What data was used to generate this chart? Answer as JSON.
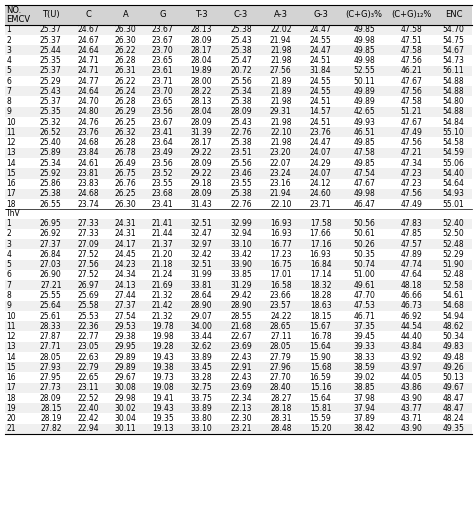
{
  "headers": [
    "NO.",
    "T(U)",
    "C",
    "A",
    "G",
    "T-3",
    "C-3",
    "A-3",
    "G-3",
    "(C+G)₃%",
    "(C+G)₁₂%",
    "ENC"
  ],
  "header2": [
    "EMCV",
    "",
    "",
    "",
    "",
    "",
    "",
    "",
    "",
    "",
    "",
    ""
  ],
  "section1_label": "EMCV",
  "section2_label": "ThV",
  "emcv_data": [
    [
      1,
      25.37,
      24.67,
      26.3,
      23.67,
      28.13,
      25.38,
      22.02,
      24.47,
      49.85,
      47.58,
      54.7
    ],
    [
      2,
      25.37,
      24.67,
      26.3,
      23.67,
      28.09,
      25.43,
      21.94,
      24.55,
      49.98,
      47.51,
      54.75
    ],
    [
      3,
      25.44,
      24.64,
      26.22,
      23.7,
      28.17,
      25.38,
      21.98,
      24.47,
      49.85,
      47.58,
      54.67
    ],
    [
      4,
      25.35,
      24.71,
      26.28,
      23.65,
      28.04,
      25.47,
      21.98,
      24.51,
      49.98,
      47.56,
      54.73
    ],
    [
      5,
      25.37,
      24.71,
      26.31,
      23.61,
      19.89,
      20.72,
      27.56,
      31.84,
      52.55,
      46.21,
      56.11
    ],
    [
      6,
      25.29,
      24.77,
      26.22,
      23.71,
      28.0,
      25.56,
      21.89,
      24.55,
      50.11,
      47.67,
      54.88
    ],
    [
      7,
      25.43,
      24.64,
      26.24,
      23.7,
      28.22,
      25.34,
      21.89,
      24.55,
      49.89,
      47.56,
      54.88
    ],
    [
      8,
      25.37,
      24.7,
      26.28,
      23.65,
      28.13,
      25.38,
      21.98,
      24.51,
      49.89,
      47.58,
      54.8
    ],
    [
      9,
      25.35,
      24.8,
      26.29,
      23.56,
      28.04,
      28.09,
      29.31,
      14.57,
      42.65,
      51.21,
      54.88
    ],
    [
      10,
      25.32,
      24.76,
      26.25,
      23.67,
      28.09,
      25.43,
      21.98,
      24.51,
      49.93,
      47.67,
      54.84
    ],
    [
      11,
      26.52,
      23.76,
      26.32,
      23.41,
      31.39,
      22.76,
      22.1,
      23.76,
      46.51,
      47.49,
      55.1
    ],
    [
      12,
      25.4,
      24.68,
      26.28,
      23.64,
      28.17,
      25.38,
      21.98,
      24.47,
      49.85,
      47.56,
      54.58
    ],
    [
      13,
      25.89,
      23.84,
      26.78,
      23.49,
      29.22,
      23.51,
      23.2,
      24.07,
      47.58,
      47.21,
      54.59
    ],
    [
      14,
      25.34,
      24.61,
      26.49,
      23.56,
      28.09,
      25.56,
      22.07,
      24.29,
      49.85,
      47.34,
      55.06
    ],
    [
      15,
      25.92,
      23.81,
      26.75,
      23.52,
      29.22,
      23.46,
      23.24,
      24.07,
      47.54,
      47.23,
      54.4
    ],
    [
      16,
      25.86,
      23.83,
      26.76,
      23.55,
      29.18,
      23.55,
      23.16,
      24.12,
      47.67,
      47.23,
      54.64
    ],
    [
      17,
      25.38,
      24.68,
      26.25,
      23.68,
      28.09,
      25.38,
      21.94,
      24.6,
      49.98,
      47.56,
      54.93
    ],
    [
      18,
      26.55,
      23.74,
      26.3,
      23.41,
      31.43,
      22.76,
      22.1,
      23.71,
      46.47,
      47.49,
      55.01
    ]
  ],
  "thv_data": [
    [
      1,
      26.95,
      27.33,
      24.31,
      21.41,
      32.51,
      32.99,
      16.93,
      17.58,
      50.56,
      47.83,
      52.4
    ],
    [
      2,
      26.92,
      27.33,
      24.31,
      21.44,
      32.47,
      32.94,
      16.93,
      17.66,
      50.61,
      47.85,
      52.5
    ],
    [
      3,
      27.37,
      27.09,
      24.17,
      21.37,
      32.97,
      33.1,
      16.77,
      17.16,
      50.26,
      47.57,
      52.48
    ],
    [
      4,
      26.84,
      27.52,
      24.45,
      21.2,
      32.42,
      33.42,
      17.23,
      16.93,
      50.35,
      47.89,
      52.29
    ],
    [
      5,
      27.03,
      27.56,
      24.23,
      21.18,
      32.51,
      33.9,
      16.75,
      16.84,
      50.74,
      47.74,
      51.9
    ],
    [
      6,
      26.9,
      27.52,
      24.34,
      21.24,
      31.99,
      33.85,
      17.01,
      17.14,
      51.0,
      47.64,
      52.48
    ],
    [
      7,
      27.21,
      26.97,
      24.13,
      21.69,
      33.81,
      31.29,
      16.58,
      18.32,
      49.61,
      48.18,
      52.58
    ],
    [
      8,
      25.55,
      25.69,
      27.44,
      21.32,
      28.64,
      29.42,
      23.66,
      18.28,
      47.7,
      46.66,
      54.61
    ],
    [
      9,
      25.64,
      25.58,
      27.37,
      21.42,
      28.9,
      28.9,
      23.57,
      18.63,
      47.53,
      46.73,
      54.68
    ],
    [
      10,
      25.61,
      25.53,
      27.54,
      21.32,
      29.07,
      28.55,
      24.22,
      18.15,
      46.71,
      46.92,
      54.94
    ],
    [
      11,
      28.33,
      22.36,
      29.53,
      19.78,
      34.0,
      21.68,
      28.65,
      15.67,
      37.35,
      44.54,
      48.62
    ],
    [
      12,
      27.87,
      22.77,
      29.38,
      19.98,
      33.44,
      22.67,
      27.11,
      16.78,
      39.45,
      44.4,
      50.34
    ],
    [
      13,
      27.71,
      23.05,
      29.95,
      19.28,
      32.62,
      23.69,
      28.05,
      15.64,
      39.33,
      43.84,
      49.83
    ],
    [
      14,
      28.05,
      22.63,
      29.89,
      19.43,
      33.89,
      22.43,
      27.79,
      15.9,
      38.33,
      43.92,
      49.48
    ],
    [
      15,
      27.93,
      22.79,
      29.89,
      19.38,
      33.45,
      22.91,
      27.96,
      15.68,
      38.59,
      43.97,
      49.26
    ],
    [
      16,
      27.95,
      22.65,
      29.67,
      19.73,
      33.28,
      22.43,
      27.7,
      16.59,
      39.02,
      44.05,
      50.13
    ],
    [
      17,
      27.73,
      23.11,
      30.08,
      19.08,
      32.75,
      23.69,
      28.4,
      15.16,
      38.85,
      43.86,
      49.67
    ],
    [
      18,
      28.09,
      22.52,
      29.98,
      19.41,
      33.75,
      22.34,
      28.27,
      15.64,
      37.98,
      43.9,
      48.47
    ],
    [
      19,
      28.15,
      22.4,
      30.02,
      19.43,
      33.89,
      22.13,
      28.18,
      15.81,
      37.94,
      43.77,
      48.47
    ],
    [
      20,
      28.19,
      22.42,
      30.04,
      19.35,
      33.8,
      22.3,
      28.31,
      15.59,
      37.89,
      43.71,
      48.24
    ],
    [
      21,
      27.82,
      22.94,
      30.11,
      19.13,
      33.1,
      23.21,
      28.48,
      15.2,
      38.42,
      43.9,
      49.35
    ]
  ],
  "bg_color": "#ffffff",
  "header_bg": "#d3d3d3",
  "row_bg_even": "#f0f0f0",
  "row_bg_odd": "#ffffff",
  "font_size": 5.5,
  "header_font_size": 6.0
}
